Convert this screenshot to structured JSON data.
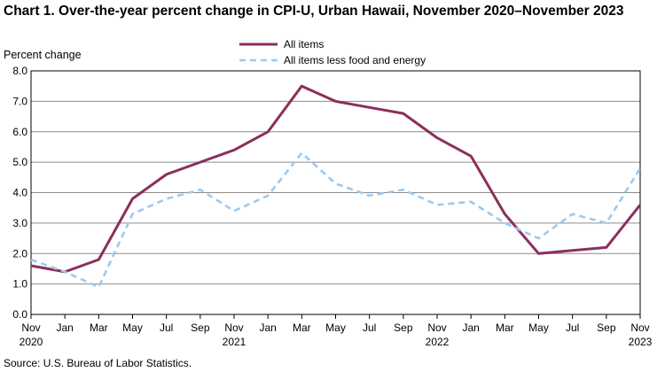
{
  "chart_data": {
    "type": "line",
    "title": "Chart 1. Over-the-year percent change in CPI-U, Urban Hawaii, November 2020–November 2023",
    "ylabel": "Percent change",
    "xlabel": "",
    "source": "Source: U.S. Bureau of Labor Statistics.",
    "ylim": [
      0,
      8
    ],
    "yticks": [
      "0.0",
      "1.0",
      "2.0",
      "3.0",
      "4.0",
      "5.0",
      "6.0",
      "7.0",
      "8.0"
    ],
    "grid": "horizontal",
    "legend_position": "top-center",
    "x": [
      "Nov 2020",
      "Jan 2021",
      "Mar 2021",
      "May 2021",
      "Jul 2021",
      "Sep 2021",
      "Nov 2021",
      "Jan 2022",
      "Mar 2022",
      "May 2022",
      "Jul 2022",
      "Sep 2022",
      "Nov 2022",
      "Jan 2023",
      "Mar 2023",
      "May 2023",
      "Jul 2023",
      "Sep 2023",
      "Nov 2023"
    ],
    "xtick_labels": [
      {
        "month": "Nov",
        "year": "2020"
      },
      {
        "month": "Jan",
        "year": ""
      },
      {
        "month": "Mar",
        "year": ""
      },
      {
        "month": "May",
        "year": ""
      },
      {
        "month": "Jul",
        "year": ""
      },
      {
        "month": "Sep",
        "year": ""
      },
      {
        "month": "Nov",
        "year": "2021"
      },
      {
        "month": "Jan",
        "year": ""
      },
      {
        "month": "Mar",
        "year": ""
      },
      {
        "month": "May",
        "year": ""
      },
      {
        "month": "Jul",
        "year": ""
      },
      {
        "month": "Sep",
        "year": ""
      },
      {
        "month": "Nov",
        "year": "2022"
      },
      {
        "month": "Jan",
        "year": ""
      },
      {
        "month": "Mar",
        "year": ""
      },
      {
        "month": "May",
        "year": ""
      },
      {
        "month": "Jul",
        "year": ""
      },
      {
        "month": "Sep",
        "year": ""
      },
      {
        "month": "Nov",
        "year": "2023"
      }
    ],
    "series": [
      {
        "name": "All items",
        "color": "#8B2F5C",
        "dash": "solid",
        "values": [
          1.6,
          1.4,
          1.8,
          3.8,
          4.6,
          5.0,
          5.4,
          6.0,
          7.5,
          7.0,
          6.8,
          6.6,
          5.8,
          5.2,
          3.3,
          2.0,
          2.1,
          2.2,
          3.6
        ]
      },
      {
        "name": "All items less food and energy",
        "color": "#9DC9EE",
        "dash": "dashed",
        "values": [
          1.8,
          1.4,
          0.9,
          3.3,
          3.8,
          4.1,
          3.4,
          3.9,
          5.3,
          4.3,
          3.9,
          4.1,
          3.6,
          3.7,
          3.0,
          2.5,
          3.3,
          3.0,
          4.8
        ]
      }
    ]
  }
}
